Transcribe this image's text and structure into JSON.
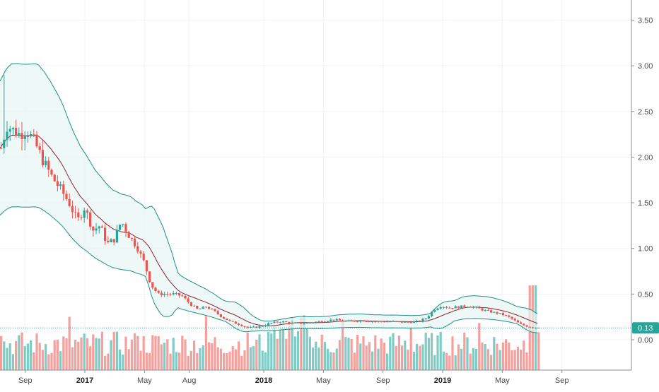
{
  "chart_data": {
    "type": "candlestick",
    "y_axis": {
      "position": "right",
      "range": [
        -0.36,
        3.76
      ],
      "ticks": [
        "3.50",
        "3.00",
        "2.50",
        "2.00",
        "1.50",
        "1.00",
        "0.50",
        "0.00"
      ],
      "tick_values": [
        3.5,
        3.0,
        2.5,
        2.0,
        1.5,
        1.0,
        0.5,
        0.0
      ]
    },
    "x_axis": {
      "ticks": [
        {
          "label": "Sep",
          "date": "2016-09",
          "year": false
        },
        {
          "label": "2017",
          "date": "2017-01",
          "year": true
        },
        {
          "label": "May",
          "date": "2017-05",
          "year": false
        },
        {
          "label": "Aug",
          "date": "2017-08",
          "year": false
        },
        {
          "label": "2018",
          "date": "2018-01",
          "year": true
        },
        {
          "label": "May",
          "date": "2018-05",
          "year": false
        },
        {
          "label": "Sep",
          "date": "2018-09",
          "year": false
        },
        {
          "label": "2019",
          "date": "2019-01",
          "year": true
        },
        {
          "label": "May",
          "date": "2019-05",
          "year": false
        },
        {
          "label": "Sep",
          "date": "2019-09",
          "year": false
        }
      ]
    },
    "current_price": {
      "label": "0.13",
      "value": 0.13
    },
    "grid": true,
    "colors": {
      "up": "#26a69a",
      "down": "#ef5350",
      "volume_up": "#80cbc4",
      "volume_down": "#f4a09c",
      "band_line": "#1f8f7f",
      "band_fill": "#e6f5f4",
      "basis_line": "#8c2232",
      "price_tag": "#26a69a",
      "grid": "#f0f3fa"
    },
    "price_range_estimates": {
      "start": "2016-08",
      "end": "2019-06",
      "high": 2.9,
      "low": 0.1,
      "last": 0.13
    }
  }
}
